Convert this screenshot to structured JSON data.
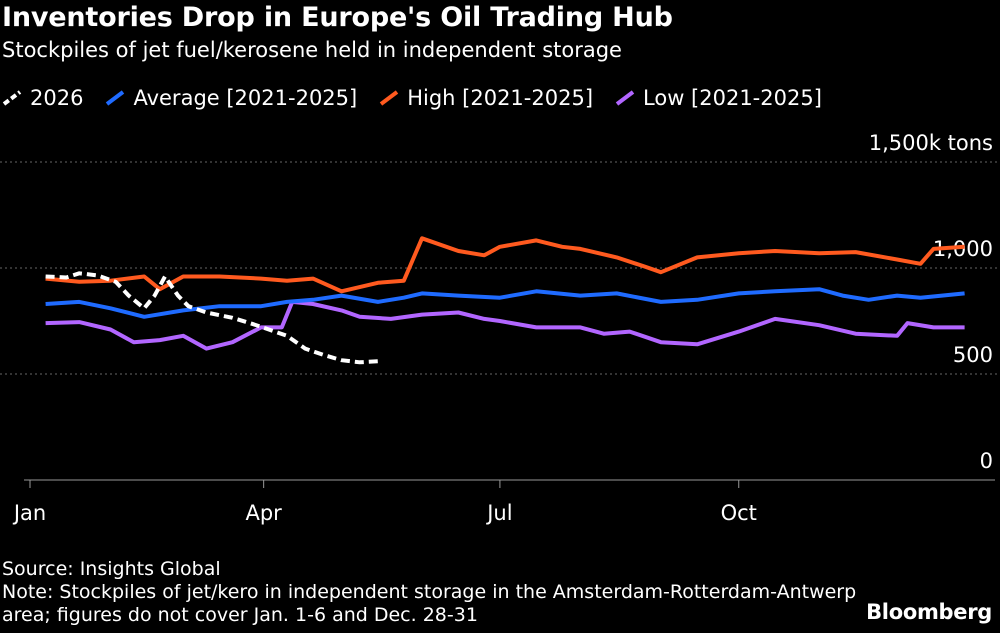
{
  "chart_data": {
    "type": "line",
    "title": "Inventories Drop in Europe's Oil Trading Hub",
    "subtitle": "Stockpiles of jet fuel/kerosene held in independent storage",
    "y_unit_label": "1,500k tons",
    "y_ticks": [
      {
        "value": 1000,
        "label": "1,000"
      },
      {
        "value": 500,
        "label": "500"
      },
      {
        "value": 0,
        "label": "0"
      }
    ],
    "ylim": [
      0,
      1500
    ],
    "x_domain": [
      "2026-01-01",
      "2026-12-31"
    ],
    "x_ticks": [
      {
        "date": "2026-01-01",
        "label": "Jan"
      },
      {
        "date": "2026-04-01",
        "label": "Apr"
      },
      {
        "date": "2026-07-01",
        "label": "Jul"
      },
      {
        "date": "2026-10-01",
        "label": "Oct"
      }
    ],
    "grid": true,
    "legend_position": "top-left",
    "series": [
      {
        "name": "2026",
        "color": "#ffffff",
        "dashed": true,
        "points": [
          [
            "2026-01-07",
            960
          ],
          [
            "2026-01-15",
            955
          ],
          [
            "2026-01-20",
            975
          ],
          [
            "2026-01-27",
            965
          ],
          [
            "2026-02-03",
            935
          ],
          [
            "2026-02-08",
            870
          ],
          [
            "2026-02-14",
            810
          ],
          [
            "2026-02-18",
            870
          ],
          [
            "2026-02-22",
            960
          ],
          [
            "2026-02-27",
            870
          ],
          [
            "2026-03-03",
            820
          ],
          [
            "2026-03-10",
            790
          ],
          [
            "2026-03-20",
            765
          ],
          [
            "2026-03-28",
            735
          ],
          [
            "2026-04-03",
            710
          ],
          [
            "2026-04-10",
            680
          ],
          [
            "2026-04-17",
            620
          ],
          [
            "2026-04-24",
            590
          ],
          [
            "2026-05-01",
            565
          ],
          [
            "2026-05-08",
            555
          ],
          [
            "2026-05-15",
            560
          ]
        ]
      },
      {
        "name": "Average [2021-2025]",
        "color": "#1f6bff",
        "dashed": false,
        "points": [
          [
            "2026-01-07",
            830
          ],
          [
            "2026-01-20",
            840
          ],
          [
            "2026-02-01",
            810
          ],
          [
            "2026-02-14",
            770
          ],
          [
            "2026-03-01",
            800
          ],
          [
            "2026-03-15",
            820
          ],
          [
            "2026-03-31",
            820
          ],
          [
            "2026-04-10",
            840
          ],
          [
            "2026-04-20",
            850
          ],
          [
            "2026-05-01",
            870
          ],
          [
            "2026-05-15",
            840
          ],
          [
            "2026-05-25",
            860
          ],
          [
            "2026-06-01",
            880
          ],
          [
            "2026-06-15",
            870
          ],
          [
            "2026-07-01",
            860
          ],
          [
            "2026-07-15",
            890
          ],
          [
            "2026-08-01",
            870
          ],
          [
            "2026-08-15",
            880
          ],
          [
            "2026-09-01",
            840
          ],
          [
            "2026-09-15",
            850
          ],
          [
            "2026-10-01",
            880
          ],
          [
            "2026-10-15",
            890
          ],
          [
            "2026-11-01",
            900
          ],
          [
            "2026-11-10",
            870
          ],
          [
            "2026-11-20",
            850
          ],
          [
            "2026-12-01",
            870
          ],
          [
            "2026-12-10",
            860
          ],
          [
            "2026-12-27",
            880
          ]
        ]
      },
      {
        "name": "High [2021-2025]",
        "color": "#ff5a1f",
        "dashed": false,
        "points": [
          [
            "2026-01-07",
            950
          ],
          [
            "2026-01-20",
            935
          ],
          [
            "2026-02-01",
            940
          ],
          [
            "2026-02-14",
            960
          ],
          [
            "2026-02-20",
            900
          ],
          [
            "2026-03-01",
            960
          ],
          [
            "2026-03-15",
            960
          ],
          [
            "2026-03-31",
            950
          ],
          [
            "2026-04-10",
            940
          ],
          [
            "2026-04-20",
            950
          ],
          [
            "2026-05-01",
            890
          ],
          [
            "2026-05-15",
            930
          ],
          [
            "2026-05-25",
            940
          ],
          [
            "2026-06-01",
            1140
          ],
          [
            "2026-06-15",
            1080
          ],
          [
            "2026-06-25",
            1060
          ],
          [
            "2026-07-01",
            1100
          ],
          [
            "2026-07-15",
            1130
          ],
          [
            "2026-07-25",
            1100
          ],
          [
            "2026-08-01",
            1090
          ],
          [
            "2026-08-15",
            1050
          ],
          [
            "2026-08-25",
            1010
          ],
          [
            "2026-09-01",
            980
          ],
          [
            "2026-09-15",
            1050
          ],
          [
            "2026-10-01",
            1070
          ],
          [
            "2026-10-15",
            1080
          ],
          [
            "2026-11-01",
            1070
          ],
          [
            "2026-11-15",
            1075
          ],
          [
            "2026-12-01",
            1040
          ],
          [
            "2026-12-10",
            1020
          ],
          [
            "2026-12-15",
            1090
          ],
          [
            "2026-12-27",
            1100
          ]
        ]
      },
      {
        "name": "Low [2021-2025]",
        "color": "#b266ff",
        "dashed": false,
        "points": [
          [
            "2026-01-07",
            740
          ],
          [
            "2026-01-20",
            745
          ],
          [
            "2026-02-01",
            710
          ],
          [
            "2026-02-10",
            650
          ],
          [
            "2026-02-20",
            660
          ],
          [
            "2026-03-01",
            680
          ],
          [
            "2026-03-10",
            620
          ],
          [
            "2026-03-20",
            650
          ],
          [
            "2026-03-31",
            720
          ],
          [
            "2026-04-08",
            720
          ],
          [
            "2026-04-12",
            840
          ],
          [
            "2026-04-20",
            830
          ],
          [
            "2026-05-01",
            800
          ],
          [
            "2026-05-08",
            770
          ],
          [
            "2026-05-20",
            760
          ],
          [
            "2026-06-01",
            780
          ],
          [
            "2026-06-15",
            790
          ],
          [
            "2026-06-25",
            760
          ],
          [
            "2026-07-01",
            750
          ],
          [
            "2026-07-15",
            720
          ],
          [
            "2026-08-01",
            720
          ],
          [
            "2026-08-10",
            690
          ],
          [
            "2026-08-20",
            700
          ],
          [
            "2026-09-01",
            650
          ],
          [
            "2026-09-15",
            640
          ],
          [
            "2026-10-01",
            700
          ],
          [
            "2026-10-15",
            760
          ],
          [
            "2026-11-01",
            730
          ],
          [
            "2026-11-15",
            690
          ],
          [
            "2026-12-01",
            680
          ],
          [
            "2026-12-05",
            740
          ],
          [
            "2026-12-15",
            720
          ],
          [
            "2026-12-27",
            720
          ]
        ]
      }
    ]
  },
  "footer": {
    "source": "Source: Insights Global",
    "note": "Note: Stockpiles of jet/kero in independent storage in the Amsterdam-Rotterdam-Antwerp area; figures do not cover Jan. 1-6 and Dec. 28-31"
  },
  "brand": "Bloomberg"
}
